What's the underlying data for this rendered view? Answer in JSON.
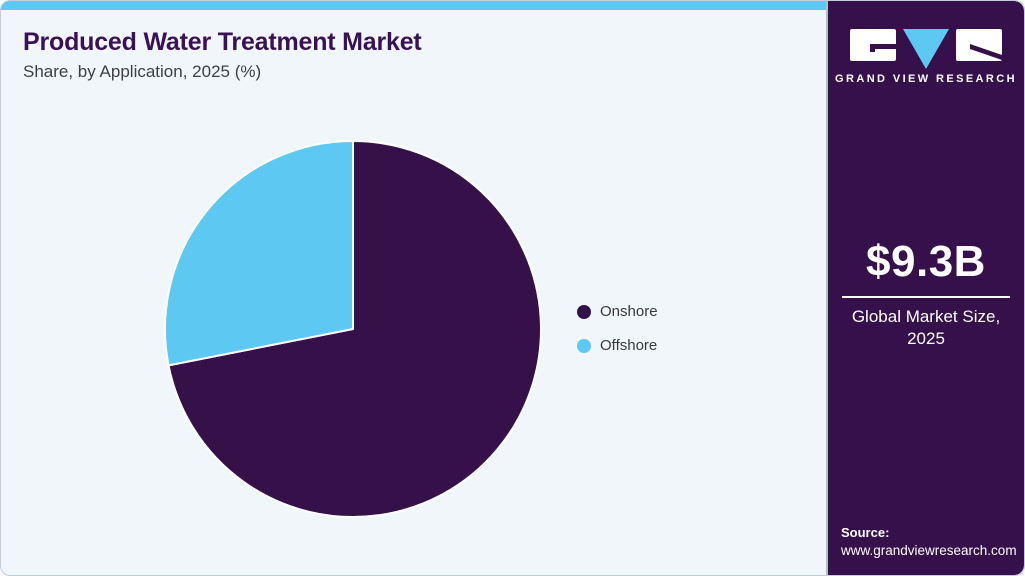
{
  "header": {
    "title": "Produced Water Treatment Market",
    "subtitle": "Share, by Application, 2025 (%)"
  },
  "chart_data": {
    "type": "pie",
    "title": "Produced Water Treatment Market Share, by Application, 2025 (%)",
    "categories": [
      "Onshore",
      "Offshore"
    ],
    "values": [
      71.9,
      28.1
    ],
    "colors": [
      "#351049",
      "#5DC9F2"
    ],
    "legend_position": "right",
    "start_angle_deg": 0,
    "direction": "clockwise",
    "slice_separator_color": "#FFFFFF"
  },
  "sidebar": {
    "brand_name": "GRAND VIEW RESEARCH",
    "stat": {
      "value": "$9.3B",
      "label_line1": "Global Market Size,",
      "label_line2": "2025"
    },
    "source_label": "Source:",
    "source_url": "www.grandviewresearch.com"
  },
  "theme": {
    "card_background": "#F1F6FB",
    "top_strip": "#5DC9F2",
    "sidebar_background": "#36104A",
    "title_color": "#3A1155",
    "subtitle_color": "#3F3F46"
  }
}
